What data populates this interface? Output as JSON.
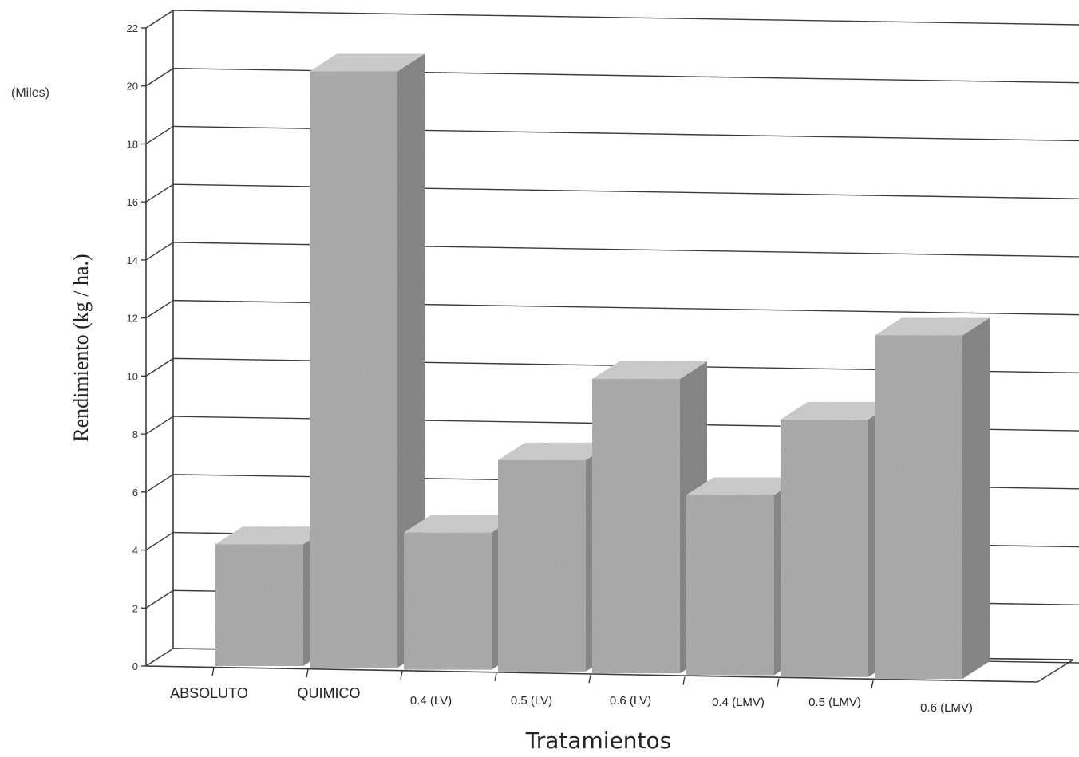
{
  "chart_data": {
    "type": "bar",
    "three_d": true,
    "categories": [
      "ABSOLUTO",
      "QUIMICO",
      "0.4 (LV)",
      "0.5 (LV)",
      "0.6 (LV)",
      "0.4 (LMV)",
      "0.5 (LMV)",
      "0.6 (LMV)"
    ],
    "values": [
      4.2,
      20.5,
      4.6,
      7.1,
      9.9,
      5.9,
      8.5,
      11.4
    ],
    "title": "",
    "xlabel": "Tratamientos",
    "ylabel": "Rendimiento (kg / ha.)",
    "y_units_label": "(Miles)",
    "ylim": [
      0,
      22
    ],
    "yticks": [
      0,
      2,
      4,
      6,
      8,
      10,
      12,
      14,
      16,
      18,
      20,
      22
    ],
    "grid": true,
    "legend": "none",
    "colors": {
      "bar_front": "#b4b4b4",
      "bar_top": "#d6d6d6",
      "bar_side": "#8e8e8e",
      "gridline": "#3a3a3a"
    }
  }
}
